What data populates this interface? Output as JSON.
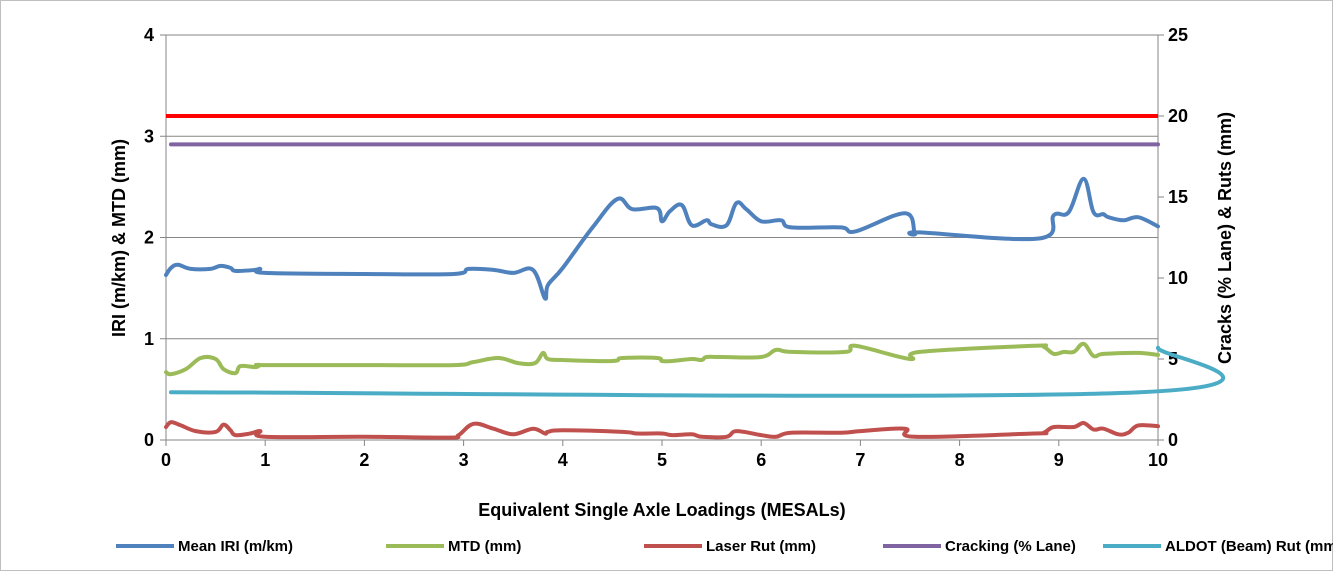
{
  "chart_data": {
    "type": "line",
    "xlabel": "Equivalent Single Axle Loadings (MESALs)",
    "ylabel_left": "IRI (m/km) & MTD (mm)",
    "ylabel_right": "Cracks (% Lane) & Ruts (mm)",
    "xlim": [
      0,
      10
    ],
    "ylim_left": [
      0,
      4
    ],
    "ylim_right": [
      0,
      25
    ],
    "x_ticks": [
      "0",
      "1",
      "2",
      "3",
      "4",
      "5",
      "6",
      "7",
      "8",
      "9",
      "10"
    ],
    "y_left_ticks": [
      "0",
      "1",
      "2",
      "3",
      "4"
    ],
    "y_right_ticks": [
      "0",
      "5",
      "10",
      "15",
      "20",
      "25"
    ],
    "grid": "horizontal",
    "legend_position": "bottom",
    "series": [
      {
        "name": "Mean IRI (m/km)",
        "axis": "left",
        "color": "#4f81bd",
        "points": [
          [
            0,
            1.63
          ],
          [
            0.05,
            1.7
          ],
          [
            0.12,
            1.73
          ],
          [
            0.25,
            1.69
          ],
          [
            0.45,
            1.69
          ],
          [
            0.55,
            1.72
          ],
          [
            0.65,
            1.7
          ],
          [
            0.7,
            1.67
          ],
          [
            0.9,
            1.68
          ],
          [
            0.95,
            1.69
          ],
          [
            1.0,
            1.65
          ],
          [
            2.0,
            1.64
          ],
          [
            2.9,
            1.64
          ],
          [
            3.05,
            1.69
          ],
          [
            3.3,
            1.68
          ],
          [
            3.5,
            1.65
          ],
          [
            3.7,
            1.68
          ],
          [
            3.82,
            1.4
          ],
          [
            3.85,
            1.53
          ],
          [
            4.0,
            1.7
          ],
          [
            4.3,
            2.1
          ],
          [
            4.55,
            2.38
          ],
          [
            4.7,
            2.28
          ],
          [
            4.95,
            2.29
          ],
          [
            5.0,
            2.16
          ],
          [
            5.08,
            2.26
          ],
          [
            5.2,
            2.32
          ],
          [
            5.3,
            2.12
          ],
          [
            5.45,
            2.17
          ],
          [
            5.5,
            2.13
          ],
          [
            5.65,
            2.12
          ],
          [
            5.75,
            2.34
          ],
          [
            5.85,
            2.28
          ],
          [
            6.0,
            2.16
          ],
          [
            6.2,
            2.17
          ],
          [
            6.3,
            2.1
          ],
          [
            6.8,
            2.1
          ],
          [
            6.95,
            2.06
          ],
          [
            7.45,
            2.24
          ],
          [
            7.55,
            2.04
          ],
          [
            7.6,
            2.05
          ],
          [
            8.8,
            1.99
          ],
          [
            8.95,
            2.22
          ],
          [
            9.1,
            2.25
          ],
          [
            9.25,
            2.58
          ],
          [
            9.35,
            2.25
          ],
          [
            9.45,
            2.23
          ],
          [
            9.5,
            2.2
          ],
          [
            9.65,
            2.17
          ],
          [
            9.8,
            2.2
          ],
          [
            10.0,
            2.11
          ]
        ]
      },
      {
        "name": "MTD (mm)",
        "axis": "left",
        "color": "#9bbb59",
        "points": [
          [
            0,
            0.67
          ],
          [
            0.05,
            0.65
          ],
          [
            0.2,
            0.7
          ],
          [
            0.35,
            0.81
          ],
          [
            0.5,
            0.8
          ],
          [
            0.58,
            0.7
          ],
          [
            0.7,
            0.66
          ],
          [
            0.75,
            0.73
          ],
          [
            0.9,
            0.72
          ],
          [
            0.95,
            0.74
          ],
          [
            1.0,
            0.74
          ],
          [
            2.0,
            0.74
          ],
          [
            2.9,
            0.74
          ],
          [
            3.1,
            0.77
          ],
          [
            3.35,
            0.81
          ],
          [
            3.55,
            0.76
          ],
          [
            3.72,
            0.76
          ],
          [
            3.8,
            0.86
          ],
          [
            3.85,
            0.8
          ],
          [
            4.0,
            0.79
          ],
          [
            4.5,
            0.78
          ],
          [
            4.6,
            0.81
          ],
          [
            4.95,
            0.81
          ],
          [
            5.0,
            0.78
          ],
          [
            5.1,
            0.78
          ],
          [
            5.3,
            0.8
          ],
          [
            5.4,
            0.79
          ],
          [
            5.45,
            0.82
          ],
          [
            5.6,
            0.82
          ],
          [
            6.0,
            0.82
          ],
          [
            6.15,
            0.89
          ],
          [
            6.3,
            0.87
          ],
          [
            6.85,
            0.87
          ],
          [
            6.95,
            0.93
          ],
          [
            7.5,
            0.8
          ],
          [
            7.6,
            0.87
          ],
          [
            8.75,
            0.93
          ],
          [
            8.85,
            0.92
          ],
          [
            8.95,
            0.85
          ],
          [
            9.05,
            0.87
          ],
          [
            9.15,
            0.87
          ],
          [
            9.25,
            0.95
          ],
          [
            9.35,
            0.83
          ],
          [
            9.45,
            0.85
          ],
          [
            9.8,
            0.86
          ],
          [
            10.0,
            0.84
          ]
        ]
      },
      {
        "name": "Laser Rut (mm)",
        "axis": "right",
        "color": "#c0504d",
        "points": [
          [
            0,
            0.8
          ],
          [
            0.05,
            1.1
          ],
          [
            0.15,
            0.9
          ],
          [
            0.3,
            0.55
          ],
          [
            0.5,
            0.5
          ],
          [
            0.58,
            0.95
          ],
          [
            0.65,
            0.6
          ],
          [
            0.7,
            0.3
          ],
          [
            0.85,
            0.4
          ],
          [
            0.95,
            0.55
          ],
          [
            1.0,
            0.2
          ],
          [
            2.0,
            0.2
          ],
          [
            2.85,
            0.15
          ],
          [
            2.95,
            0.3
          ],
          [
            3.1,
            1.0
          ],
          [
            3.3,
            0.7
          ],
          [
            3.5,
            0.35
          ],
          [
            3.7,
            0.7
          ],
          [
            3.82,
            0.4
          ],
          [
            3.85,
            0.5
          ],
          [
            4.0,
            0.6
          ],
          [
            4.6,
            0.5
          ],
          [
            4.75,
            0.4
          ],
          [
            5.0,
            0.4
          ],
          [
            5.1,
            0.3
          ],
          [
            5.3,
            0.35
          ],
          [
            5.4,
            0.2
          ],
          [
            5.65,
            0.2
          ],
          [
            5.75,
            0.55
          ],
          [
            6.0,
            0.3
          ],
          [
            6.15,
            0.2
          ],
          [
            6.3,
            0.45
          ],
          [
            6.8,
            0.45
          ],
          [
            7.0,
            0.55
          ],
          [
            7.45,
            0.7
          ],
          [
            7.55,
            0.2
          ],
          [
            8.75,
            0.4
          ],
          [
            8.85,
            0.45
          ],
          [
            8.95,
            0.8
          ],
          [
            9.15,
            0.8
          ],
          [
            9.25,
            1.05
          ],
          [
            9.35,
            0.65
          ],
          [
            9.45,
            0.7
          ],
          [
            9.6,
            0.35
          ],
          [
            9.7,
            0.45
          ],
          [
            9.8,
            0.9
          ],
          [
            10.0,
            0.85
          ]
        ]
      },
      {
        "name": "Cracking (% Lane)",
        "axis": "right",
        "color": "#8064a2",
        "points": [
          [
            0.05,
            18.25
          ],
          [
            10.0,
            18.25
          ]
        ]
      },
      {
        "name": "ALDOT (Beam) Rut (mm)",
        "axis": "right",
        "color": "#4bacc6",
        "points": [
          [
            0.05,
            2.95
          ],
          [
            9.82,
            2.95
          ],
          [
            10.0,
            5.7
          ]
        ]
      }
    ],
    "reference_line": {
      "axis": "left",
      "value": 3.2,
      "color": "#ff0000"
    }
  }
}
